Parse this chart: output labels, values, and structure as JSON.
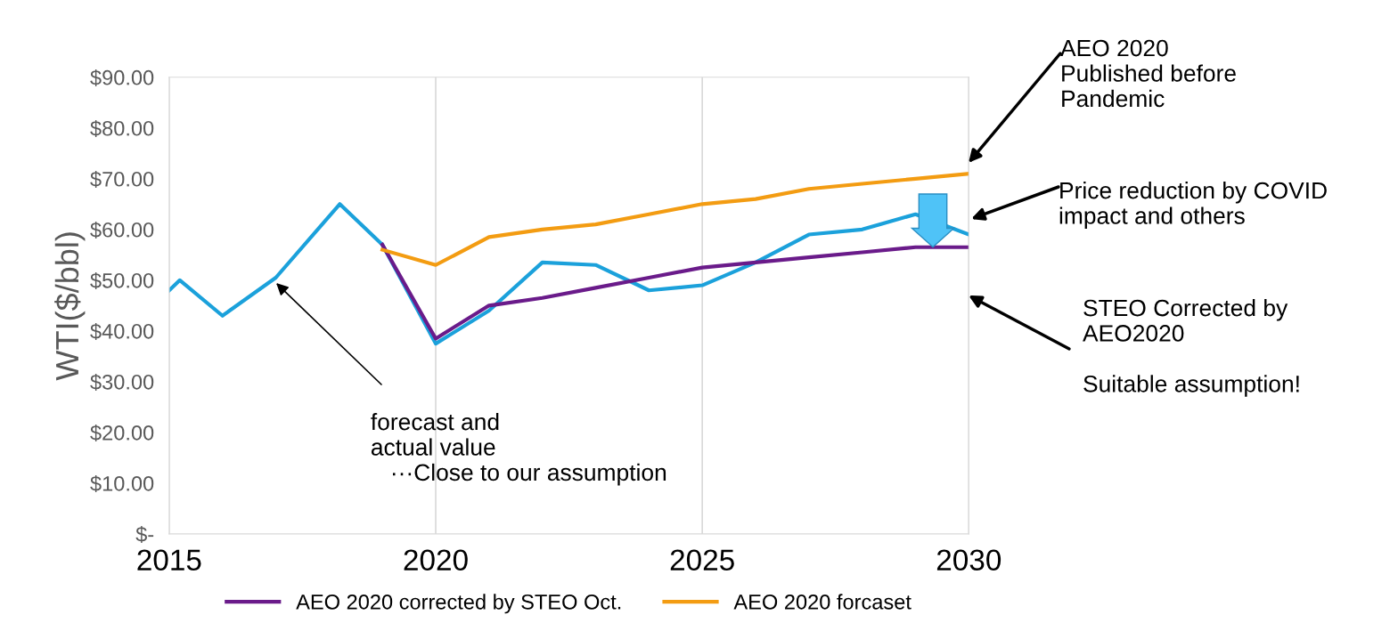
{
  "chart_data": {
    "type": "line",
    "ylabel": "WTI($/bbl)",
    "xlim": [
      2015,
      2030
    ],
    "xticks": [
      2015,
      2020,
      2025,
      2030
    ],
    "ylim": [
      0,
      90
    ],
    "yticks": [
      {
        "value": 0,
        "label": "$-"
      },
      {
        "value": 10,
        "label": "$10.00"
      },
      {
        "value": 20,
        "label": "$20.00"
      },
      {
        "value": 30,
        "label": "$30.00"
      },
      {
        "value": 40,
        "label": "$40.00"
      },
      {
        "value": 50,
        "label": "$50.00"
      },
      {
        "value": 60,
        "label": "$60.00"
      },
      {
        "value": 70,
        "label": "$70.00"
      },
      {
        "value": 80,
        "label": "$80.00"
      },
      {
        "value": 90,
        "label": "$90.00"
      }
    ],
    "grid": "x",
    "legend": "bottom",
    "marker": "none",
    "series": [
      {
        "color": "#1ba1db",
        "x": [
          2015,
          2015.2,
          2016,
          2017,
          2018.2,
          2019,
          2020,
          2021,
          2022,
          2023,
          2024,
          2025,
          2026,
          2027,
          2028,
          2029,
          2030
        ],
        "values": [
          48,
          50,
          43,
          50.5,
          65,
          57,
          37.5,
          44,
          53.5,
          53,
          48,
          49,
          53.5,
          59,
          60,
          63,
          59
        ]
      },
      {
        "name": "AEO 2020 corrected by STEO Oct.",
        "color": "#6a1b8a",
        "x": [
          2019,
          2020,
          2021,
          2022,
          2023,
          2024,
          2025,
          2026,
          2027,
          2028,
          2029,
          2030
        ],
        "values": [
          57,
          38.5,
          45,
          46.5,
          48.5,
          50.5,
          52.5,
          53.5,
          54.5,
          55.5,
          56.5,
          56.5
        ]
      },
      {
        "name": "AEO 2020 forcaset",
        "color": "#f39c12",
        "x": [
          2019,
          2020,
          2021,
          2022,
          2023,
          2024,
          2025,
          2026,
          2027,
          2028,
          2029,
          2030
        ],
        "values": [
          56,
          53,
          58.5,
          60,
          61,
          63,
          65,
          66,
          68,
          69,
          70,
          71
        ]
      }
    ],
    "annotations": [
      "AEO 2020\nPublished before\nPandemic",
      "Price reduction by COVID\nimpact and others",
      "STEO Corrected by\nAEO2020\n\nSuitable assumption!",
      "forecast and\nactual value\n   ···Close to our assumption"
    ]
  }
}
